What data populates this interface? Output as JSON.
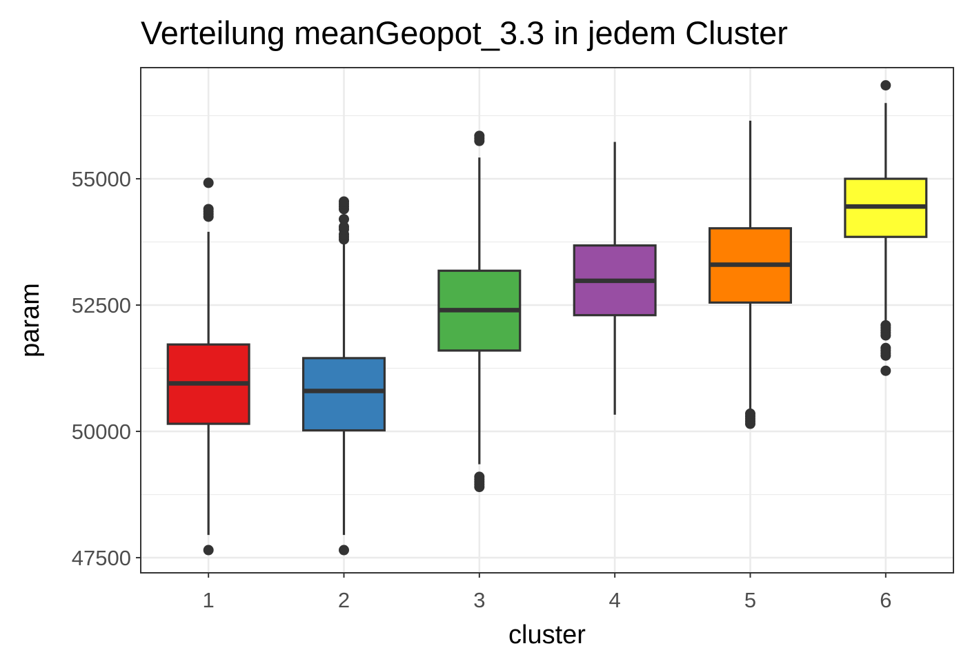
{
  "chart_data": {
    "type": "boxplot",
    "title": "Verteilung meanGeopot_3.3 in jedem Cluster",
    "xlabel": "cluster",
    "ylabel": "param",
    "ylim": [
      47200,
      57200
    ],
    "y_ticks": [
      47500,
      50000,
      52500,
      55000
    ],
    "y_tick_labels": [
      "47500",
      "50000",
      "52500",
      "55000"
    ],
    "y_minor_ticks": [
      48750,
      51250,
      53750,
      56250
    ],
    "grid": true,
    "categories": [
      "1",
      "2",
      "3",
      "4",
      "5",
      "6"
    ],
    "colors": [
      "#e41a1c",
      "#377eb8",
      "#4daf4a",
      "#984ea3",
      "#ff7f00",
      "#ffff33"
    ],
    "boxes": [
      {
        "cluster": "1",
        "whisker_low": 47950,
        "q1": 50150,
        "median": 50950,
        "q3": 51720,
        "whisker_high": 53950,
        "outliers": [
          47650,
          54250,
          54300,
          54350,
          54400,
          54920
        ]
      },
      {
        "cluster": "2",
        "whisker_low": 47950,
        "q1": 50020,
        "median": 50800,
        "q3": 51450,
        "whisker_high": 53750,
        "outliers": [
          47650,
          53800,
          53850,
          53900,
          54000,
          54050,
          54200,
          54400,
          54450,
          54500,
          54550
        ]
      },
      {
        "cluster": "3",
        "whisker_low": 49350,
        "q1": 51600,
        "median": 52400,
        "q3": 53180,
        "whisker_high": 55420,
        "outliers": [
          48900,
          48950,
          49000,
          49050,
          49100,
          55750,
          55800,
          55850
        ]
      },
      {
        "cluster": "4",
        "whisker_low": 50330,
        "q1": 52300,
        "median": 52980,
        "q3": 53680,
        "whisker_high": 55730,
        "outliers": []
      },
      {
        "cluster": "5",
        "whisker_low": 50400,
        "q1": 52550,
        "median": 53300,
        "q3": 54020,
        "whisker_high": 56150,
        "outliers": [
          50150,
          50200,
          50250,
          50300,
          50350
        ]
      },
      {
        "cluster": "6",
        "whisker_low": 52150,
        "q1": 53850,
        "median": 54450,
        "q3": 55000,
        "whisker_high": 56500,
        "outliers": [
          51200,
          51500,
          51550,
          51600,
          51650,
          51900,
          51950,
          52000,
          52050,
          52100,
          56850
        ]
      }
    ]
  }
}
